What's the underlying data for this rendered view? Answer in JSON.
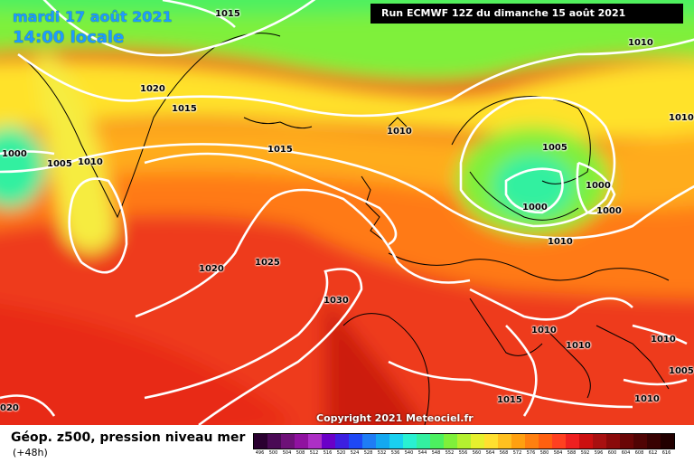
{
  "header": {
    "date": "mardi 17 août 2021",
    "time": "14:00 locale",
    "run": "Run ECMWF 12Z du dimanche 15 août 2021"
  },
  "copyright": "Copyright 2021 Meteociel.fr",
  "isobar_labels": [
    "1015",
    "1010",
    "1020",
    "1015",
    "1010",
    "1000",
    "1005",
    "1010",
    "1015",
    "1010",
    "1005",
    "1000",
    "1000",
    "1000",
    "1010",
    "1015",
    "1020",
    "1025",
    "1030",
    "1010",
    "1010",
    "1010",
    "1015",
    "1005",
    "1010",
    "020"
  ],
  "legend": {
    "title": "Géop. z500, pression niveau mer",
    "subtitle": "(+48h)",
    "ticks": [
      "496",
      "500",
      "504",
      "508",
      "512",
      "516",
      "520",
      "524",
      "528",
      "532",
      "536",
      "540",
      "544",
      "548",
      "552",
      "556",
      "560",
      "564",
      "568",
      "572",
      "576",
      "580",
      "584",
      "588",
      "592",
      "596",
      "600",
      "604",
      "608",
      "612",
      "616"
    ],
    "colors": [
      "#2a0030",
      "#4a0a55",
      "#6e1178",
      "#9012a0",
      "#ad2fc5",
      "#6a00c8",
      "#3d1fe0",
      "#1f48f5",
      "#1f7df5",
      "#14a8f0",
      "#19d0f0",
      "#29f0d2",
      "#33f0a0",
      "#4cf060",
      "#7ff03a",
      "#b4f030",
      "#e6f02e",
      "#ffe030",
      "#ffc020",
      "#ffa010",
      "#ff8010",
      "#ff6010",
      "#ff4020",
      "#ee2020",
      "#cc1010",
      "#a81010",
      "#8a0a0a",
      "#6a0606",
      "#500404",
      "#380202",
      "#220000"
    ]
  },
  "colors": {
    "header_text": "#1e9bff",
    "run_bg": "#000000",
    "contour": "#ffffff"
  }
}
